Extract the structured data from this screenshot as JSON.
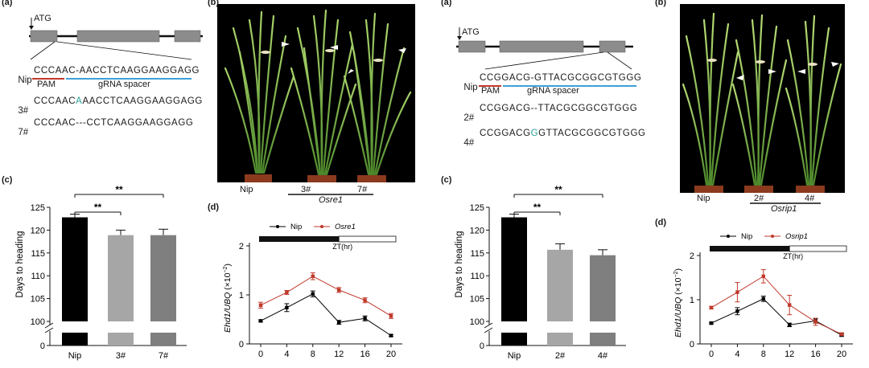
{
  "panel_a1": {
    "label": "(a)",
    "atg": "ATG",
    "rows": [
      {
        "name": "Nip",
        "seq": "CCCAAC-AACCTCAAGGAAGGAGG"
      },
      {
        "name": "3#",
        "pre": "CCCAAC",
        "ins": "A",
        "post": "AACCTCAAGGAAGGAGG"
      },
      {
        "name": "7#",
        "seq": "CCCAAC---CCTCAAGGAAGGAGG"
      }
    ],
    "pam": "PAM",
    "spacer": "gRNA spacer"
  },
  "panel_b1": {
    "label": "(b)",
    "plants": [
      "Nip",
      "3#",
      "7#"
    ],
    "group": "Osre1"
  },
  "panel_a2": {
    "label": "(a)",
    "atg": "ATG",
    "rows": [
      {
        "name": "Nip",
        "seq": "CCGGACG-GTTACGCGGCGTGGG"
      },
      {
        "name": "2#",
        "seq": "CCGGACG--TTACGCGGCGTGGG"
      },
      {
        "name": "4#",
        "pre": "CCGGACG",
        "ins": "G",
        "post": "GTTACGCGGCGTGGG"
      }
    ],
    "pam": "PAM",
    "spacer": "gRNA spacer"
  },
  "panel_b2": {
    "label": "(b)",
    "plants": [
      "Nip",
      "2#",
      "4#"
    ],
    "group": "Osrip1"
  },
  "colors": {
    "nip_bar": "#000000",
    "mut1_bar": "#a6a6a6",
    "mut2_bar": "#7f7f7f",
    "nip_line": "#000000",
    "mut_line": "#c0392b",
    "pam_line": "#c0392b",
    "spacer_line": "#3ea0d8",
    "insert": "#2aa198"
  },
  "chart_data": [
    {
      "id": "c1",
      "panel": "(c)",
      "type": "bar",
      "categories": [
        "Nip",
        "3#",
        "7#"
      ],
      "values": [
        122.8,
        118.9,
        118.9
      ],
      "errors": [
        0.7,
        1.1,
        1.3
      ],
      "ylabel": "Days to heading",
      "yticks_upper": [
        100,
        105,
        110,
        115,
        120,
        125
      ],
      "yticks_lower": [
        0
      ],
      "ylim_upper": [
        100,
        125
      ],
      "axis_break": true,
      "significance": [
        {
          "from": "Nip",
          "to": "3#",
          "label": "**"
        },
        {
          "from": "Nip",
          "to": "7#",
          "label": "**"
        }
      ]
    },
    {
      "id": "d1",
      "panel": "(d)",
      "type": "line",
      "x": [
        0,
        4,
        8,
        12,
        16,
        20
      ],
      "xticks": [
        0,
        4,
        8,
        12,
        16,
        20
      ],
      "ylim": [
        0,
        2
      ],
      "yticks": [
        0,
        1,
        2
      ],
      "ylabel_main": "Ehd1/UBQ",
      "ylabel_unit": "(×10",
      "ylabel_exp": "−2",
      "ylabel_close": ")",
      "zt_label": "ZT(hr)",
      "dark_period": [
        0,
        12
      ],
      "series": [
        {
          "name": "Nip",
          "values": [
            0.47,
            0.74,
            1.02,
            0.44,
            0.52,
            0.17
          ],
          "errors": [
            0.02,
            0.08,
            0.06,
            0.04,
            0.05,
            0.02
          ]
        },
        {
          "name": "Osre1",
          "values": [
            0.79,
            1.05,
            1.38,
            1.1,
            0.89,
            0.57
          ],
          "errors": [
            0.06,
            0.04,
            0.07,
            0.05,
            0.05,
            0.05
          ]
        }
      ]
    },
    {
      "id": "c2",
      "panel": "(c)",
      "type": "bar",
      "categories": [
        "Nip",
        "2#",
        "4#"
      ],
      "values": [
        122.8,
        115.7,
        114.5
      ],
      "errors": [
        0.7,
        1.3,
        1.2
      ],
      "ylabel": "Days to heading",
      "yticks_upper": [
        100,
        105,
        110,
        115,
        120,
        125
      ],
      "yticks_lower": [
        0
      ],
      "ylim_upper": [
        100,
        125
      ],
      "axis_break": true,
      "significance": [
        {
          "from": "Nip",
          "to": "2#",
          "label": "**"
        },
        {
          "from": "Nip",
          "to": "4#",
          "label": "**"
        }
      ]
    },
    {
      "id": "d2",
      "panel": "(d)",
      "type": "line",
      "x": [
        0,
        4,
        8,
        12,
        16,
        20
      ],
      "xticks": [
        0,
        4,
        8,
        12,
        16,
        20
      ],
      "ylim": [
        0,
        2
      ],
      "yticks": [
        0,
        1,
        2
      ],
      "ylabel_main": "Ehd1/UBQ",
      "ylabel_unit": "(×10",
      "ylabel_exp": "−2",
      "ylabel_close": ")",
      "zt_label": "ZT(hr)",
      "dark_period": [
        0,
        12
      ],
      "series": [
        {
          "name": "Nip",
          "values": [
            0.47,
            0.74,
            1.02,
            0.43,
            0.52,
            0.2
          ],
          "errors": [
            0.02,
            0.08,
            0.06,
            0.04,
            0.05,
            0.03
          ]
        },
        {
          "name": "Osrip1",
          "values": [
            0.82,
            1.17,
            1.53,
            0.88,
            0.5,
            0.22
          ],
          "errors": [
            0.03,
            0.22,
            0.15,
            0.22,
            0.08,
            0.03
          ]
        }
      ]
    }
  ]
}
